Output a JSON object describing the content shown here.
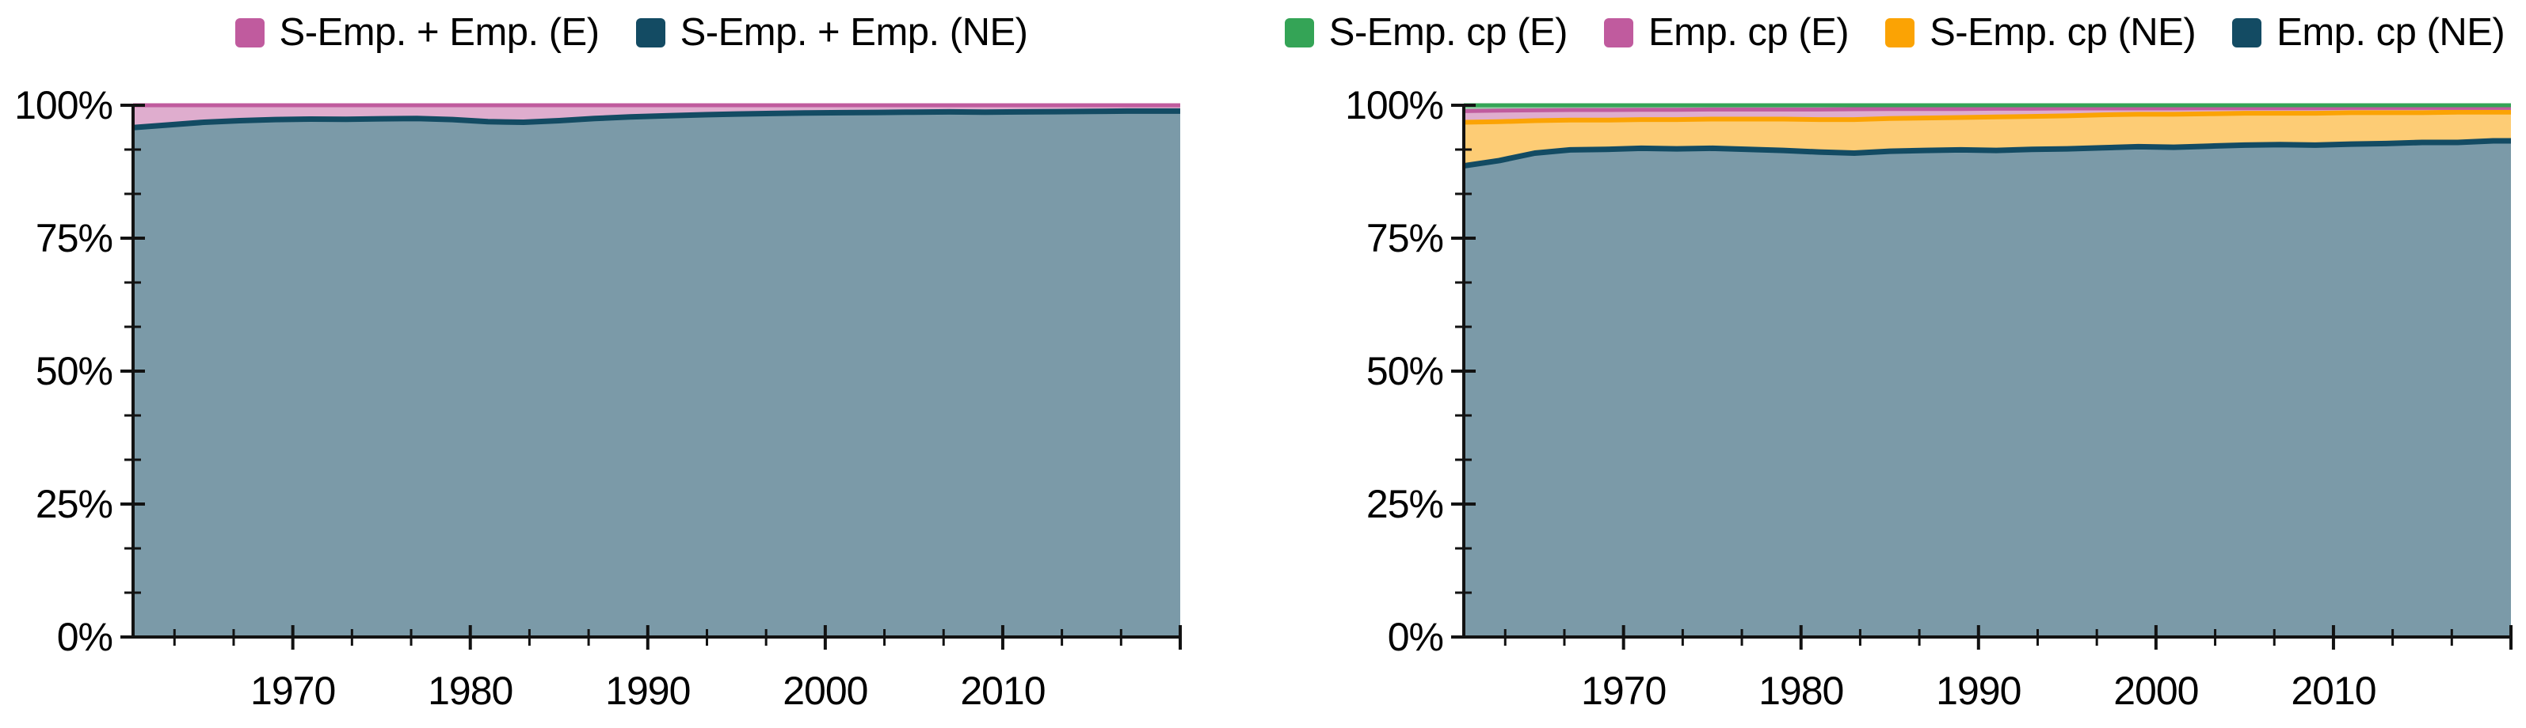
{
  "figure": {
    "background": "#ffffff",
    "text_color": "#000000",
    "axis_color": "#121212"
  },
  "chart_data": [
    {
      "type": "area",
      "title": "",
      "stacked": true,
      "percent_scale": true,
      "grid": false,
      "legend_position": "top",
      "xlim": [
        1961,
        2020
      ],
      "ylim": [
        0,
        100
      ],
      "x": [
        1961,
        1963,
        1965,
        1967,
        1969,
        1971,
        1973,
        1975,
        1977,
        1979,
        1981,
        1983,
        1985,
        1987,
        1989,
        1991,
        1993,
        1995,
        1997,
        1999,
        2001,
        2003,
        2005,
        2007,
        2009,
        2011,
        2013,
        2015,
        2017,
        2019,
        2020
      ],
      "x_ticks": [
        {
          "year": 1970,
          "label": "1970"
        },
        {
          "year": 1980,
          "label": "1980"
        },
        {
          "year": 1990,
          "label": "1990"
        },
        {
          "year": 2000,
          "label": "2000"
        },
        {
          "year": 2010,
          "label": "2010"
        },
        {
          "year": 2020,
          "label": ""
        }
      ],
      "y_major_ticks": [
        0,
        25,
        50,
        75,
        100
      ],
      "y_tick_labels": [
        "0%",
        "25%",
        "50%",
        "75%",
        "100%"
      ],
      "y_minor_ticks": [
        8.333,
        16.667,
        33.333,
        41.667,
        58.333,
        66.667,
        83.333,
        91.667
      ],
      "legend": [
        {
          "label": "S-Emp. + Emp. (E)",
          "color": "#c05b9e"
        },
        {
          "label": "S-Emp. + Emp. (NE)",
          "color": "#134b63"
        }
      ],
      "series": [
        {
          "name": "S-Emp. + Emp. (NE)",
          "color": "#134b63",
          "fill_opacity": 0.56,
          "line_width": 7,
          "top": [
            95.8,
            96.3,
            96.8,
            97.1,
            97.3,
            97.4,
            97.35,
            97.45,
            97.5,
            97.3,
            96.9,
            96.8,
            97.1,
            97.5,
            97.8,
            98.0,
            98.2,
            98.35,
            98.45,
            98.55,
            98.6,
            98.65,
            98.7,
            98.75,
            98.7,
            98.75,
            98.8,
            98.85,
            98.9,
            98.9,
            98.9
          ]
        },
        {
          "name": "S-Emp. + Emp. (E)",
          "color": "#c05b9e",
          "fill_opacity": 0.5,
          "line_width": 5,
          "top_constant": 100
        }
      ]
    },
    {
      "type": "area",
      "title": "",
      "stacked": true,
      "percent_scale": true,
      "grid": false,
      "legend_position": "top",
      "xlim": [
        1961,
        2020
      ],
      "ylim": [
        0,
        100
      ],
      "x": [
        1961,
        1963,
        1965,
        1967,
        1969,
        1971,
        1973,
        1975,
        1977,
        1979,
        1981,
        1983,
        1985,
        1987,
        1989,
        1991,
        1993,
        1995,
        1997,
        1999,
        2001,
        2003,
        2005,
        2007,
        2009,
        2011,
        2013,
        2015,
        2017,
        2019,
        2020
      ],
      "x_ticks": [
        {
          "year": 1970,
          "label": "1970"
        },
        {
          "year": 1980,
          "label": "1980"
        },
        {
          "year": 1990,
          "label": "1990"
        },
        {
          "year": 2000,
          "label": "2000"
        },
        {
          "year": 2010,
          "label": "2010"
        },
        {
          "year": 2020,
          "label": ""
        }
      ],
      "y_major_ticks": [
        0,
        25,
        50,
        75,
        100
      ],
      "y_tick_labels": [
        "0%",
        "25%",
        "50%",
        "75%",
        "100%"
      ],
      "y_minor_ticks": [
        8.333,
        16.667,
        33.333,
        41.667,
        58.333,
        66.667,
        83.333,
        91.667
      ],
      "legend": [
        {
          "label": "S-Emp. cp (E)",
          "color": "#34a456"
        },
        {
          "label": "Emp. cp (E)",
          "color": "#c05b9e"
        },
        {
          "label": "S-Emp. cp (NE)",
          "color": "#fba304"
        },
        {
          "label": "Emp. cp (NE)",
          "color": "#134b63"
        }
      ],
      "series": [
        {
          "name": "Emp. cp (NE)",
          "color": "#134b63",
          "fill_opacity": 0.56,
          "line_width": 7,
          "top": [
            88.6,
            89.6,
            91.0,
            91.6,
            91.7,
            91.9,
            91.8,
            91.9,
            91.7,
            91.5,
            91.2,
            91.0,
            91.35,
            91.5,
            91.6,
            91.5,
            91.7,
            91.8,
            92.0,
            92.2,
            92.1,
            92.3,
            92.5,
            92.6,
            92.5,
            92.7,
            92.8,
            93.0,
            93.0,
            93.3,
            93.3
          ]
        },
        {
          "name": "S-Emp. cp (NE)",
          "color": "#fba304",
          "fill_opacity": 0.55,
          "line_width": 6,
          "top": [
            96.8,
            96.9,
            97.1,
            97.2,
            97.2,
            97.3,
            97.3,
            97.4,
            97.4,
            97.4,
            97.3,
            97.3,
            97.5,
            97.6,
            97.7,
            97.8,
            97.9,
            98.0,
            98.2,
            98.3,
            98.3,
            98.4,
            98.5,
            98.5,
            98.5,
            98.6,
            98.6,
            98.6,
            98.7,
            98.7,
            98.7
          ]
        },
        {
          "name": "Emp. cp (E)",
          "color": "#c05b9e",
          "fill_opacity": 0.5,
          "line_width": 5,
          "top": [
            98.9,
            99.0,
            99.05,
            99.1,
            99.1,
            99.15,
            99.15,
            99.2,
            99.2,
            99.2,
            99.2,
            99.25,
            99.3,
            99.3,
            99.3,
            99.35,
            99.35,
            99.4,
            99.4,
            99.4,
            99.4,
            99.45,
            99.45,
            99.45,
            99.45,
            99.5,
            99.5,
            99.5,
            99.5,
            99.5,
            99.5
          ]
        },
        {
          "name": "S-Emp. cp (E)",
          "color": "#34a456",
          "fill_opacity": 0.5,
          "line_width": 5,
          "top_constant": 100
        }
      ]
    }
  ]
}
